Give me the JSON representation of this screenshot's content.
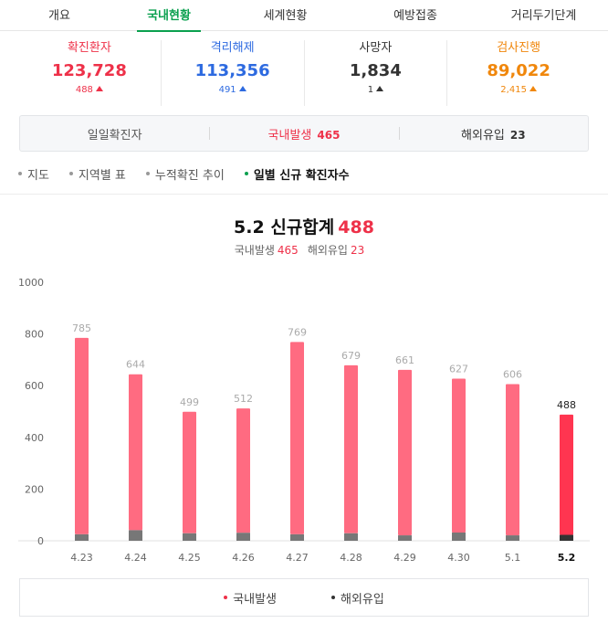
{
  "tabs": [
    "개요",
    "국내현황",
    "세계현황",
    "예방접종",
    "거리두기단계"
  ],
  "active_tab": 1,
  "stats": [
    {
      "label": "확진환자",
      "value": "123,728",
      "delta": "488",
      "color": "#ee3149"
    },
    {
      "label": "격리해제",
      "value": "113,356",
      "delta": "491",
      "color": "#2d6ae0"
    },
    {
      "label": "사망자",
      "value": "1,834",
      "delta": "1",
      "color": "#333333"
    },
    {
      "label": "검사진행",
      "value": "89,022",
      "delta": "2,415",
      "color": "#f0870c"
    }
  ],
  "breakdown": {
    "daily_label": "일일확진자",
    "domestic_label": "국내발생",
    "domestic_value": "465",
    "overseas_label": "해외유입",
    "overseas_value": "23"
  },
  "subnav": [
    "지도",
    "지역별 표",
    "누적확진 추이",
    "일별 신규 확진자수"
  ],
  "subnav_active": 3,
  "chart_header": {
    "date": "5.2",
    "title": "신규합계",
    "total": "488",
    "domestic_label": "국내발생",
    "domestic_value": "465",
    "overseas_label": "해외유입",
    "overseas_value": "23"
  },
  "chart_data": {
    "type": "bar",
    "stacked": true,
    "categories": [
      "4.23",
      "4.24",
      "4.25",
      "4.26",
      "4.27",
      "4.28",
      "4.29",
      "4.30",
      "5.1",
      "5.2"
    ],
    "totals": [
      785,
      644,
      499,
      512,
      769,
      679,
      661,
      627,
      606,
      488
    ],
    "series": [
      {
        "name": "국내발생",
        "values": [
          760,
          603,
          470,
          481,
          744,
          650,
          640,
          595,
          585,
          465
        ],
        "color": "#ff6b81",
        "highlight_color": "#ff3550"
      },
      {
        "name": "해외유입",
        "values": [
          25,
          41,
          29,
          31,
          25,
          29,
          21,
          32,
          21,
          23
        ],
        "color": "#777777",
        "highlight_color": "#333333"
      }
    ],
    "yticks": [
      0,
      200,
      400,
      600,
      800,
      1000
    ],
    "ylim": [
      0,
      1000
    ],
    "highlight_index": 9,
    "legend_position": "bottom"
  }
}
